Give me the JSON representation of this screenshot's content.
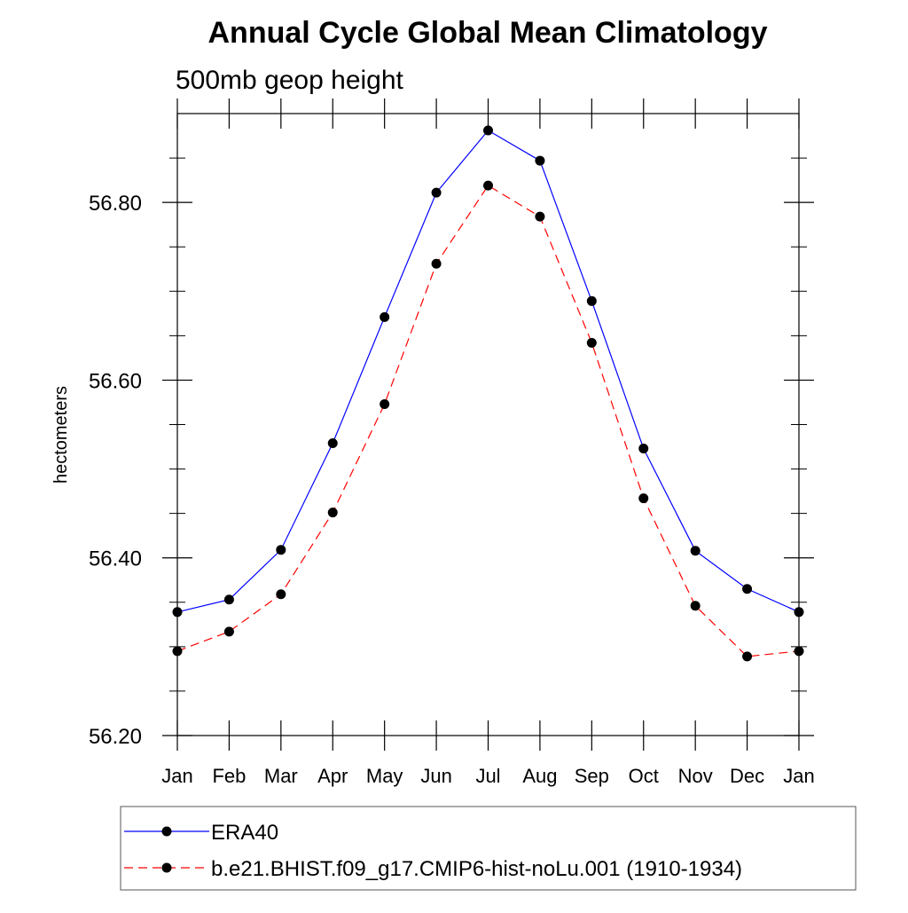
{
  "chart_data": {
    "type": "line",
    "title": "Annual Cycle Global Mean Climatology",
    "subtitle": "500mb geop height",
    "xlabel": "",
    "ylabel": "hectometers",
    "categories": [
      "Jan",
      "Feb",
      "Mar",
      "Apr",
      "May",
      "Jun",
      "Jul",
      "Aug",
      "Sep",
      "Oct",
      "Nov",
      "Dec",
      "Jan"
    ],
    "ylim": [
      56.2,
      56.9
    ],
    "yticks": [
      56.2,
      56.4,
      56.6,
      56.8
    ],
    "ytick_labels": [
      "56.20",
      "56.40",
      "56.60",
      "56.80"
    ],
    "grid": false,
    "legend_position": "bottom",
    "series": [
      {
        "name": "ERA40",
        "color": "#0000ff",
        "dash": "solid",
        "marker": "filled-circle",
        "values": [
          56.339,
          56.353,
          56.409,
          56.529,
          56.671,
          56.811,
          56.881,
          56.847,
          56.689,
          56.523,
          56.408,
          56.365,
          56.339
        ]
      },
      {
        "name": "b.e21.BHIST.f09_g17.CMIP6-hist-noLu.001 (1910-1934)",
        "color": "#ff0000",
        "dash": "dashed",
        "marker": "filled-circle",
        "values": [
          56.295,
          56.317,
          56.359,
          56.451,
          56.573,
          56.731,
          56.819,
          56.784,
          56.642,
          56.467,
          56.346,
          56.289,
          56.295
        ]
      }
    ]
  }
}
